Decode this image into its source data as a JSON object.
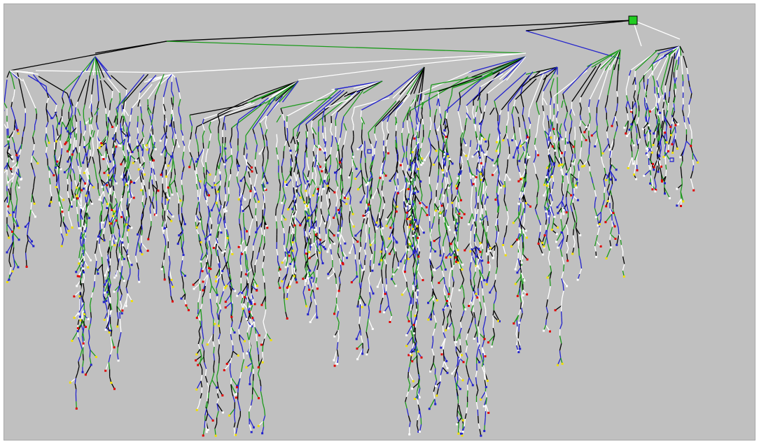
{
  "diagram": {
    "kind": "search-tree",
    "background": "#c0c0c0",
    "edge_colors": [
      "#000000",
      "#1c9a1c",
      "#2222cc",
      "#ffffff"
    ],
    "leaf_colors": [
      "#f0e000",
      "#e00000",
      "#ffffff",
      "#2222cc"
    ],
    "root_marker": {
      "color": "#22cc22",
      "shape": "square"
    },
    "selected_marker": {
      "color": "#2222cc",
      "shape": "hollow-square"
    },
    "clusters": [
      {
        "branches": 7,
        "min_depth": 18,
        "max_depth": 30
      },
      {
        "branches": 10,
        "min_depth": 20,
        "max_depth": 48
      },
      {
        "branches": 9,
        "min_depth": 18,
        "max_depth": 36
      },
      {
        "branches": 12,
        "min_depth": 22,
        "max_depth": 62
      },
      {
        "branches": 11,
        "min_depth": 18,
        "max_depth": 44
      },
      {
        "branches": 10,
        "min_depth": 18,
        "max_depth": 38
      },
      {
        "branches": 12,
        "min_depth": 20,
        "max_depth": 66
      },
      {
        "branches": 10,
        "min_depth": 18,
        "max_depth": 44
      },
      {
        "branches": 8,
        "min_depth": 14,
        "max_depth": 30
      },
      {
        "branches": 14,
        "min_depth": 10,
        "max_depth": 22
      }
    ]
  }
}
